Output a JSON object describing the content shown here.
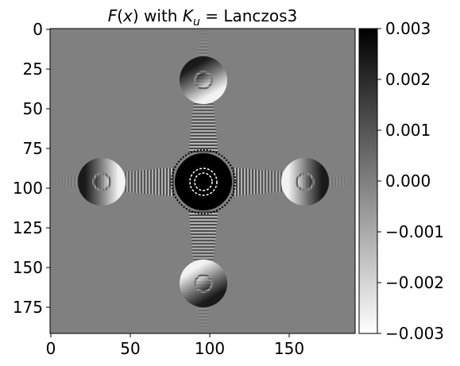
{
  "chart_data": {
    "type": "heatmap",
    "title_parts": {
      "func": "F",
      "open": "(",
      "var": "x",
      "close": ")",
      "middle": " with ",
      "k": "K",
      "sub": "u",
      "eq": " = ",
      "kernel": "Lanczos3"
    },
    "xlabel": "",
    "ylabel": "",
    "image_size": [
      192,
      192
    ],
    "xlim": [
      -0.5,
      191.5
    ],
    "ylim": [
      191.5,
      -0.5
    ],
    "x_ticks": [
      0,
      50,
      100,
      150
    ],
    "x_tick_labels": [
      "0",
      "50",
      "100",
      "150"
    ],
    "y_ticks": [
      0,
      25,
      50,
      75,
      100,
      125,
      150,
      175
    ],
    "y_tick_labels": [
      "0",
      "25",
      "50",
      "75",
      "100",
      "125",
      "150",
      "175"
    ],
    "colormap": "gray_r",
    "vmin": -0.003,
    "vmax": 0.003,
    "colorbar_ticks": [
      0.003,
      0.002,
      0.001,
      0.0,
      -0.001,
      -0.002,
      -0.003
    ],
    "colorbar_tick_labels": [
      "0.003",
      "0.002",
      "0.001",
      "0.000",
      "−0.001",
      "−0.002",
      "−0.003"
    ],
    "background_value": 0.0,
    "features": [
      {
        "shape": "ring",
        "center": [
          96,
          96
        ],
        "inner_radius": 10,
        "outer_radius": 18,
        "value": 0.003,
        "interference": true
      },
      {
        "shape": "ring",
        "center": [
          96,
          32
        ],
        "inner_radius": 6,
        "outer_radius": 15,
        "value": "dipole",
        "orientation": "vertical"
      },
      {
        "shape": "ring",
        "center": [
          96,
          160
        ],
        "inner_radius": 6,
        "outer_radius": 15,
        "value": "dipole",
        "orientation": "vertical"
      },
      {
        "shape": "ring",
        "center": [
          32,
          96
        ],
        "inner_radius": 6,
        "outer_radius": 15,
        "value": "dipole",
        "orientation": "horizontal"
      },
      {
        "shape": "ring",
        "center": [
          160,
          96
        ],
        "inner_radius": 6,
        "outer_radius": 15,
        "value": "dipole",
        "orientation": "horizontal"
      }
    ]
  }
}
